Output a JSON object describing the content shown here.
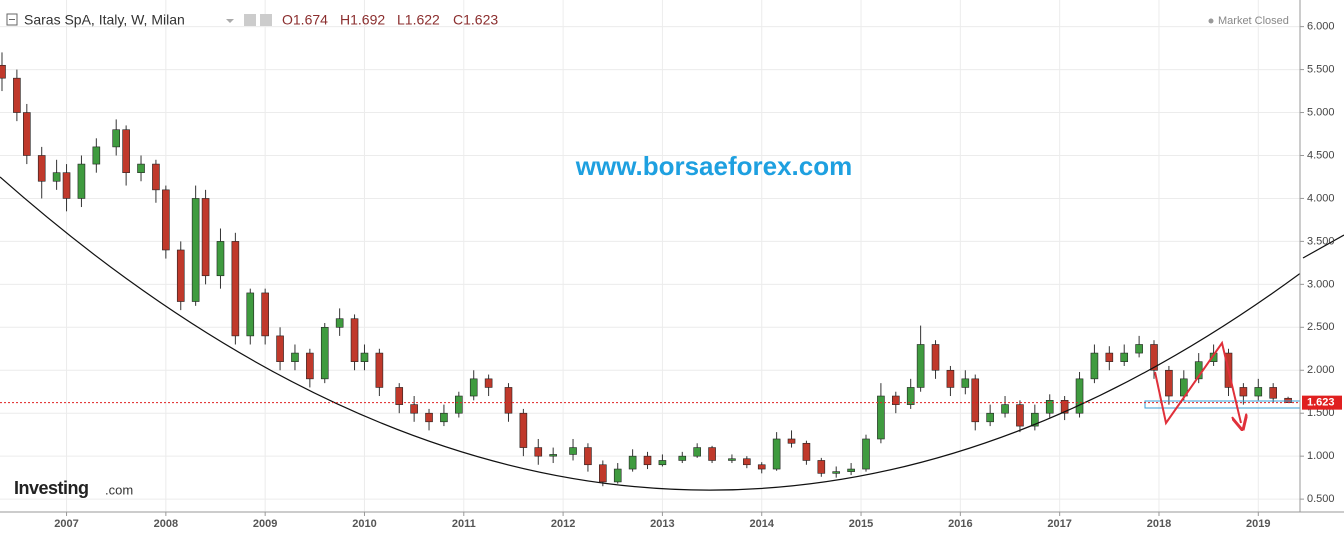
{
  "header": {
    "title": "Saras SpA, Italy, W, Milan",
    "ohlc": [
      "O1.674",
      "H1.692",
      "L1.622",
      "C1.623"
    ],
    "status": "Market Closed",
    "logo": [
      "Investing",
      ".com"
    ]
  },
  "watermark": "www.borsaeforex.com",
  "chart_data": {
    "type": "candlestick",
    "x": [
      2006.35,
      2006.5,
      2006.6,
      2006.75,
      2006.9,
      2007.0,
      2007.15,
      2007.3,
      2007.5,
      2007.6,
      2007.75,
      2007.9,
      2008.0,
      2008.15,
      2008.3,
      2008.4,
      2008.55,
      2008.7,
      2008.85,
      2009.0,
      2009.15,
      2009.3,
      2009.45,
      2009.6,
      2009.75,
      2009.9,
      2010.0,
      2010.15,
      2010.35,
      2010.5,
      2010.65,
      2010.8,
      2010.95,
      2011.1,
      2011.25,
      2011.45,
      2011.6,
      2011.75,
      2011.9,
      2012.1,
      2012.25,
      2012.4,
      2012.55,
      2012.7,
      2012.85,
      2013.0,
      2013.2,
      2013.35,
      2013.5,
      2013.7,
      2013.85,
      2014.0,
      2014.15,
      2014.3,
      2014.45,
      2014.6,
      2014.75,
      2014.9,
      2015.05,
      2015.2,
      2015.35,
      2015.5,
      2015.6,
      2015.75,
      2015.9,
      2016.05,
      2016.15,
      2016.3,
      2016.45,
      2016.6,
      2016.75,
      2016.9,
      2017.05,
      2017.2,
      2017.35,
      2017.5,
      2017.65,
      2017.8,
      2017.95,
      2018.1,
      2018.25,
      2018.4,
      2018.55,
      2018.7,
      2018.85,
      2019.0,
      2019.15,
      2019.3
    ],
    "open": [
      5.55,
      5.4,
      5.0,
      4.5,
      4.2,
      4.3,
      4.0,
      4.4,
      4.6,
      4.8,
      4.3,
      4.4,
      4.1,
      3.4,
      2.8,
      4.0,
      3.1,
      3.5,
      2.4,
      2.9,
      2.4,
      2.1,
      2.2,
      1.9,
      2.5,
      2.6,
      2.1,
      2.2,
      1.8,
      1.6,
      1.5,
      1.4,
      1.5,
      1.7,
      1.9,
      1.8,
      1.5,
      1.1,
      1.0,
      1.02,
      1.1,
      0.9,
      0.7,
      0.85,
      1.0,
      0.9,
      0.95,
      1.0,
      1.1,
      0.95,
      0.97,
      0.9,
      0.85,
      1.2,
      1.15,
      0.95,
      0.8,
      0.82,
      0.85,
      1.2,
      1.7,
      1.6,
      1.8,
      2.3,
      2.0,
      1.8,
      1.9,
      1.4,
      1.5,
      1.6,
      1.35,
      1.5,
      1.65,
      1.5,
      1.9,
      2.2,
      2.1,
      2.2,
      2.3,
      2.0,
      1.7,
      1.9,
      2.1,
      2.2,
      1.8,
      1.7,
      1.8,
      1.674
    ],
    "high": [
      5.7,
      5.5,
      5.1,
      4.6,
      4.45,
      4.4,
      4.5,
      4.7,
      4.92,
      4.85,
      4.5,
      4.45,
      4.15,
      3.5,
      4.15,
      4.1,
      3.65,
      3.6,
      2.95,
      2.95,
      2.5,
      2.3,
      2.25,
      2.55,
      2.72,
      2.65,
      2.3,
      2.25,
      1.85,
      1.7,
      1.55,
      1.6,
      1.75,
      2.0,
      1.95,
      1.85,
      1.55,
      1.2,
      1.1,
      1.2,
      1.15,
      0.95,
      0.92,
      1.08,
      1.05,
      1.02,
      1.05,
      1.15,
      1.12,
      1.02,
      1.0,
      0.93,
      1.28,
      1.3,
      1.18,
      0.98,
      0.88,
      0.92,
      1.25,
      1.85,
      1.75,
      1.9,
      2.52,
      2.35,
      2.05,
      2.0,
      1.95,
      1.6,
      1.7,
      1.65,
      1.6,
      1.72,
      1.7,
      1.98,
      2.3,
      2.28,
      2.3,
      2.4,
      2.35,
      2.05,
      2.0,
      2.2,
      2.3,
      2.25,
      1.85,
      1.9,
      1.85,
      1.692
    ],
    "low": [
      5.25,
      4.9,
      4.4,
      4.0,
      4.1,
      3.85,
      3.9,
      4.3,
      4.5,
      4.15,
      4.2,
      3.95,
      3.3,
      2.7,
      2.75,
      3.0,
      2.95,
      2.3,
      2.3,
      2.3,
      2.0,
      2.0,
      1.8,
      1.85,
      2.4,
      2.0,
      2.0,
      1.7,
      1.5,
      1.4,
      1.3,
      1.35,
      1.45,
      1.65,
      1.7,
      1.4,
      1.0,
      0.9,
      0.92,
      0.95,
      0.82,
      0.65,
      0.68,
      0.82,
      0.85,
      0.88,
      0.92,
      0.98,
      0.92,
      0.92,
      0.86,
      0.8,
      0.83,
      1.1,
      0.9,
      0.76,
      0.75,
      0.78,
      0.82,
      1.15,
      1.5,
      1.55,
      1.75,
      1.9,
      1.7,
      1.72,
      1.3,
      1.35,
      1.45,
      1.28,
      1.3,
      1.45,
      1.42,
      1.45,
      1.85,
      2.0,
      2.05,
      2.15,
      1.9,
      1.6,
      1.65,
      1.85,
      2.05,
      1.7,
      1.6,
      1.65,
      1.63,
      1.622
    ],
    "close": [
      5.4,
      5.0,
      4.5,
      4.2,
      4.3,
      4.0,
      4.4,
      4.6,
      4.8,
      4.3,
      4.4,
      4.1,
      3.4,
      2.8,
      4.0,
      3.1,
      3.5,
      2.4,
      2.9,
      2.4,
      2.1,
      2.2,
      1.9,
      2.5,
      2.6,
      2.1,
      2.2,
      1.8,
      1.6,
      1.5,
      1.4,
      1.5,
      1.7,
      1.9,
      1.8,
      1.5,
      1.1,
      1.0,
      1.02,
      1.1,
      0.9,
      0.7,
      0.85,
      1.0,
      0.9,
      0.95,
      1.0,
      1.1,
      0.95,
      0.97,
      0.9,
      0.85,
      1.2,
      1.15,
      0.95,
      0.8,
      0.82,
      0.85,
      1.2,
      1.7,
      1.6,
      1.8,
      2.3,
      2.0,
      1.8,
      1.9,
      1.4,
      1.5,
      1.6,
      1.35,
      1.5,
      1.65,
      1.5,
      1.9,
      2.2,
      2.1,
      2.2,
      2.3,
      2.0,
      1.7,
      1.9,
      2.1,
      2.2,
      1.8,
      1.7,
      1.8,
      1.674,
      1.623
    ],
    "up_color": "#3f9b3f",
    "down_color": "#c0392b",
    "last_price": 1.623,
    "last_price_color": "#e02020",
    "xlim": [
      2006.33,
      2019.42
    ],
    "xticks": [
      2007,
      2008,
      2009,
      2010,
      2011,
      2012,
      2013,
      2014,
      2015,
      2016,
      2017,
      2018,
      2019
    ],
    "ylim": [
      0.35,
      6.31
    ],
    "yticks": [
      {
        "value": 0.5,
        "label": "0.500"
      },
      {
        "value": 1.0,
        "label": "1.000"
      },
      {
        "value": 1.5,
        "label": "1.500"
      },
      {
        "value": 2.0,
        "label": "2.000"
      },
      {
        "value": 2.5,
        "label": "2.500"
      },
      {
        "value": 3.0,
        "label": "3.000"
      },
      {
        "value": 3.5,
        "label": "3.500"
      },
      {
        "value": 4.0,
        "label": "4.000"
      },
      {
        "value": 4.5,
        "label": "4.500"
      },
      {
        "value": 5.0,
        "label": "5.000"
      },
      {
        "value": 5.5,
        "label": "5.500"
      },
      {
        "value": 6.0,
        "label": "6.000"
      }
    ],
    "grid": true
  }
}
